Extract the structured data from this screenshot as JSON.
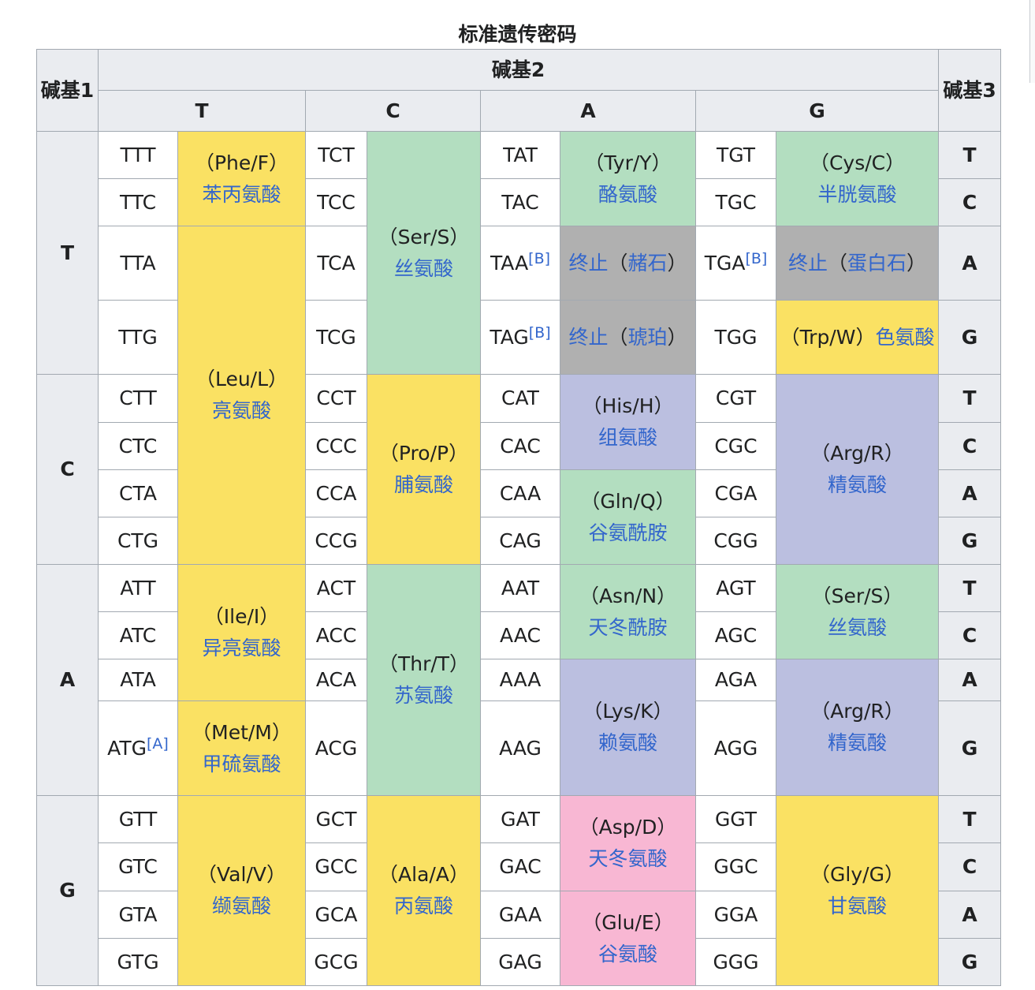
{
  "caption": "标准遗传密码",
  "header": {
    "base1": "碱基1",
    "base2": "碱基2",
    "base3": "碱基3",
    "columns": [
      "T",
      "C",
      "A",
      "G"
    ]
  },
  "rows": {
    "T": "T",
    "C": "C",
    "A": "A",
    "G": "G"
  },
  "third": [
    "T",
    "C",
    "A",
    "G"
  ],
  "ref_b": "[B]",
  "ref_a": "[A]",
  "codons": {
    "TTT": "TTT",
    "TTC": "TTC",
    "TTA": "TTA",
    "TTG": "TTG",
    "TCT": "TCT",
    "TCC": "TCC",
    "TCA": "TCA",
    "TCG": "TCG",
    "TAT": "TAT",
    "TAC": "TAC",
    "TAA": "TAA",
    "TAG": "TAG",
    "TGT": "TGT",
    "TGC": "TGC",
    "TGA": "TGA",
    "TGG": "TGG",
    "CTT": "CTT",
    "CTC": "CTC",
    "CTA": "CTA",
    "CTG": "CTG",
    "CCT": "CCT",
    "CCC": "CCC",
    "CCA": "CCA",
    "CCG": "CCG",
    "CAT": "CAT",
    "CAC": "CAC",
    "CAA": "CAA",
    "CAG": "CAG",
    "CGT": "CGT",
    "CGC": "CGC",
    "CGA": "CGA",
    "CGG": "CGG",
    "ATT": "ATT",
    "ATC": "ATC",
    "ATA": "ATA",
    "ATG": "ATG",
    "ACT": "ACT",
    "ACC": "ACC",
    "ACA": "ACA",
    "ACG": "ACG",
    "AAT": "AAT",
    "AAC": "AAC",
    "AAA": "AAA",
    "AAG": "AAG",
    "AGT": "AGT",
    "AGC": "AGC",
    "AGA": "AGA",
    "AGG": "AGG",
    "GTT": "GTT",
    "GTC": "GTC",
    "GTA": "GTA",
    "GTG": "GTG",
    "GCT": "GCT",
    "GCC": "GCC",
    "GCA": "GCA",
    "GCG": "GCG",
    "GAT": "GAT",
    "GAC": "GAC",
    "GAA": "GAA",
    "GAG": "GAG",
    "GGT": "GGT",
    "GGC": "GGC",
    "GGA": "GGA",
    "GGG": "GGG"
  },
  "amino": {
    "phe": {
      "abbr": "（Phe/F）",
      "name": "苯丙氨酸"
    },
    "leu": {
      "abbr": "（Leu/L）",
      "name": "亮氨酸"
    },
    "ser": {
      "abbr": "（Ser/S）",
      "name": "丝氨酸"
    },
    "tyr": {
      "abbr": "（Tyr/Y）",
      "name": "酪氨酸"
    },
    "cys": {
      "abbr": "（Cys/C）",
      "name": "半胱氨酸"
    },
    "stop_ochre": {
      "stop": "终止",
      "paren_open": "（",
      "name": "赭石",
      "paren_close": "）"
    },
    "stop_opal": {
      "stop": "终止",
      "paren_open": "（",
      "name": "蛋白石",
      "paren_close": "）"
    },
    "stop_amber": {
      "stop": "终止",
      "paren_open": "（",
      "name": "琥珀",
      "paren_close": "）"
    },
    "trp": {
      "abbr": "（Trp/W）",
      "name": "色氨酸"
    },
    "pro": {
      "abbr": "（Pro/P）",
      "name": "脯氨酸"
    },
    "his": {
      "abbr": "（His/H）",
      "name": "组氨酸"
    },
    "gln": {
      "abbr": "（Gln/Q）",
      "name": "谷氨酰胺"
    },
    "arg": {
      "abbr": "（Arg/R）",
      "name": "精氨酸"
    },
    "ile": {
      "abbr": "（Ile/I）",
      "name": "异亮氨酸"
    },
    "met": {
      "abbr": "（Met/M）",
      "name": "甲硫氨酸"
    },
    "thr": {
      "abbr": "（Thr/T）",
      "name": "苏氨酸"
    },
    "asn": {
      "abbr": "（Asn/N）",
      "name": "天冬酰胺"
    },
    "ser2": {
      "abbr": "（Ser/S）",
      "name": "丝氨酸"
    },
    "lys": {
      "abbr": "（Lys/K）",
      "name": "赖氨酸"
    },
    "arg2": {
      "abbr": "（Arg/R）",
      "name": "精氨酸"
    },
    "val": {
      "abbr": "（Val/V）",
      "name": "缬氨酸"
    },
    "ala": {
      "abbr": "（Ala/A）",
      "name": "丙氨酸"
    },
    "asp": {
      "abbr": "（Asp/D）",
      "name": "天冬氨酸"
    },
    "glu": {
      "abbr": "（Glu/E）",
      "name": "谷氨酸"
    },
    "gly": {
      "abbr": "（Gly/G）",
      "name": "甘氨酸"
    }
  },
  "colors": {
    "nonpolar": "#fae163",
    "polar": "#b3dec0",
    "basic": "#bbbfe0",
    "acidic": "#f8b7d3",
    "stop": "#b0b0b0",
    "link": "#3366cc"
  }
}
